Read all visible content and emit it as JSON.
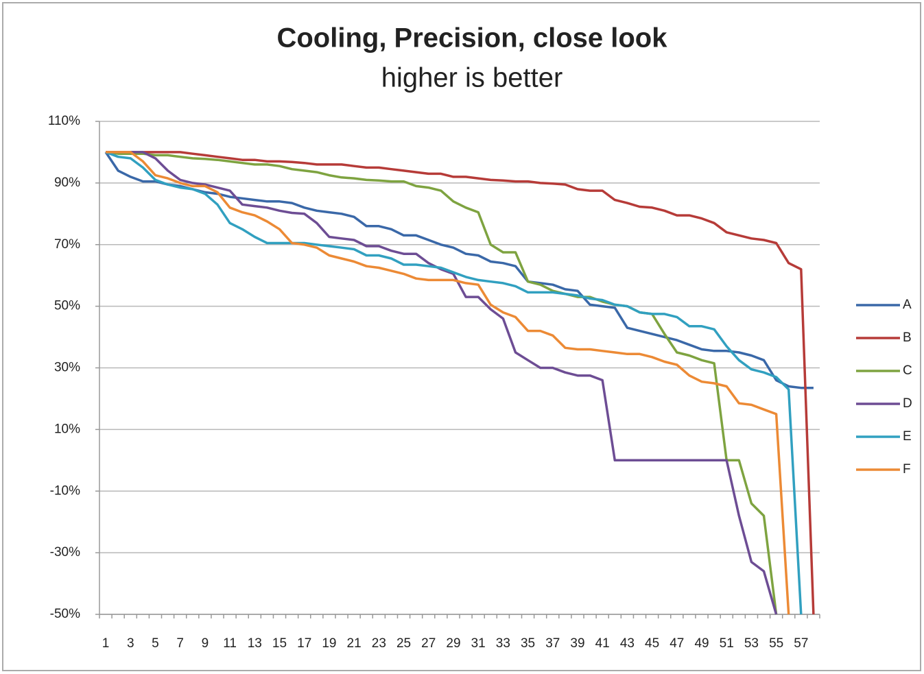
{
  "chart_data": {
    "type": "line",
    "title": "Cooling, Precision, close look",
    "subtitle": "higher is better",
    "categories": [
      "1",
      null,
      "3",
      null,
      "5",
      null,
      "7",
      null,
      "9",
      null,
      "11",
      null,
      "13",
      null,
      "15",
      null,
      "17",
      null,
      "19",
      null,
      "21",
      null,
      "23",
      null,
      "25",
      null,
      "27",
      null,
      "29",
      null,
      "31",
      null,
      "33",
      null,
      "35",
      null,
      "37",
      null,
      "39",
      null,
      "41",
      null,
      "43",
      null,
      "45",
      null,
      "47",
      null,
      "49",
      null,
      "51",
      null,
      "53",
      null,
      "55",
      null,
      "57",
      null
    ],
    "ylim": [
      -50,
      110
    ],
    "yticks": [
      {
        "value": -50,
        "label": "-50%"
      },
      {
        "value": -30,
        "label": "-30%"
      },
      {
        "value": -10,
        "label": "-10%"
      },
      {
        "value": 10,
        "label": "10%"
      },
      {
        "value": 30,
        "label": "30%"
      },
      {
        "value": 50,
        "label": "50%"
      },
      {
        "value": 70,
        "label": "70%"
      },
      {
        "value": 90,
        "label": "90%"
      },
      {
        "value": 110,
        "label": "110%"
      }
    ],
    "grid": true,
    "legend": "right",
    "series": [
      {
        "name": "A",
        "color": "#3a68a8",
        "values": [
          100,
          94,
          92,
          90.5,
          90.5,
          89.5,
          89,
          88,
          87,
          86.5,
          85.5,
          85,
          84.5,
          84,
          84,
          83.5,
          82,
          81,
          80.5,
          80,
          79,
          76,
          76,
          75,
          73,
          73,
          71.5,
          70,
          69,
          67,
          66.5,
          64.5,
          64,
          63,
          58,
          57.5,
          57,
          55.5,
          55,
          50.5,
          50,
          49.5,
          43,
          42,
          41,
          40,
          39,
          37.5,
          36,
          35.5,
          35.5,
          35,
          34,
          32.5,
          26,
          24,
          23.5,
          23.5
        ]
      },
      {
        "name": "B",
        "color": "#b63b38",
        "values": [
          100,
          100,
          100,
          100,
          100,
          100,
          100,
          99.5,
          99,
          98.5,
          98,
          97.5,
          97.5,
          97,
          97,
          96.8,
          96.5,
          96,
          96,
          96,
          95.5,
          95,
          95,
          94.5,
          94,
          93.5,
          93,
          93,
          92,
          92,
          91.5,
          91,
          90.8,
          90.5,
          90.5,
          90,
          89.8,
          89.5,
          88,
          87.5,
          87.5,
          84.5,
          83.5,
          82.3,
          82,
          81,
          79.5,
          79.5,
          78.5,
          77,
          74,
          73,
          72,
          71.5,
          70.5,
          64,
          62,
          -50
        ]
      },
      {
        "name": "C",
        "color": "#7ea340",
        "values": [
          100,
          99.5,
          99.5,
          99.5,
          99,
          99,
          98.5,
          98,
          97.8,
          97.5,
          97,
          96.5,
          96,
          96,
          95.5,
          94.5,
          94,
          93.5,
          92.5,
          91.8,
          91.5,
          91,
          90.8,
          90.5,
          90.5,
          89,
          88.5,
          87.5,
          84,
          82,
          80.5,
          70,
          67.5,
          67.5,
          58,
          57,
          55,
          54,
          53,
          53,
          51.5,
          50.5,
          50,
          48,
          47.5,
          41,
          35,
          34,
          32.5,
          31.5,
          0,
          0,
          -14,
          -18,
          -50,
          null,
          null,
          null
        ]
      },
      {
        "name": "D",
        "color": "#6d4d94",
        "values": [
          100,
          100,
          100,
          100,
          98,
          94,
          91,
          90,
          89.5,
          88.5,
          87.5,
          83,
          82.5,
          82,
          81,
          80.3,
          80,
          77,
          72.5,
          72,
          71.5,
          69.5,
          69.5,
          68,
          67,
          67,
          64,
          62,
          60.5,
          53,
          53,
          49,
          46,
          35,
          32.5,
          30,
          30,
          28.5,
          27.5,
          27.5,
          26,
          0,
          0,
          0,
          0,
          0,
          0,
          0,
          0,
          0,
          0,
          -18,
          -33,
          -36,
          -50,
          null,
          null,
          null
        ]
      },
      {
        "name": "E",
        "color": "#31a0c0",
        "values": [
          100,
          98.5,
          98,
          95,
          91,
          89.5,
          88.5,
          88,
          86.5,
          83,
          77,
          75,
          72.5,
          70.5,
          70.5,
          70.5,
          70.5,
          70,
          69.5,
          69,
          68.5,
          66.5,
          66.5,
          65.5,
          63.5,
          63.5,
          63,
          62.5,
          61,
          59.5,
          58.5,
          58,
          57.5,
          56.5,
          54.5,
          54.5,
          54.5,
          54,
          53.5,
          52.5,
          52,
          50.5,
          50,
          48,
          47.5,
          47.5,
          46.5,
          43.5,
          43.5,
          42.5,
          37,
          32.5,
          29.5,
          28.5,
          27,
          23,
          -50,
          null
        ]
      },
      {
        "name": "F",
        "color": "#ec8a35",
        "values": [
          100,
          100,
          100,
          97,
          92.5,
          91.5,
          90,
          89,
          89,
          87,
          82,
          80.5,
          79.5,
          77.5,
          75,
          70.5,
          70,
          69,
          66.5,
          65.5,
          64.5,
          63,
          62.5,
          61.5,
          60.5,
          59,
          58.5,
          58.5,
          58.5,
          57.5,
          57,
          50.5,
          48,
          46.5,
          42,
          42,
          40.5,
          36.5,
          36,
          36,
          35.5,
          35,
          34.5,
          34.5,
          33.5,
          32,
          31,
          27.5,
          25.5,
          25,
          24,
          18.5,
          18,
          16.5,
          15,
          -50,
          null,
          null
        ]
      }
    ]
  }
}
